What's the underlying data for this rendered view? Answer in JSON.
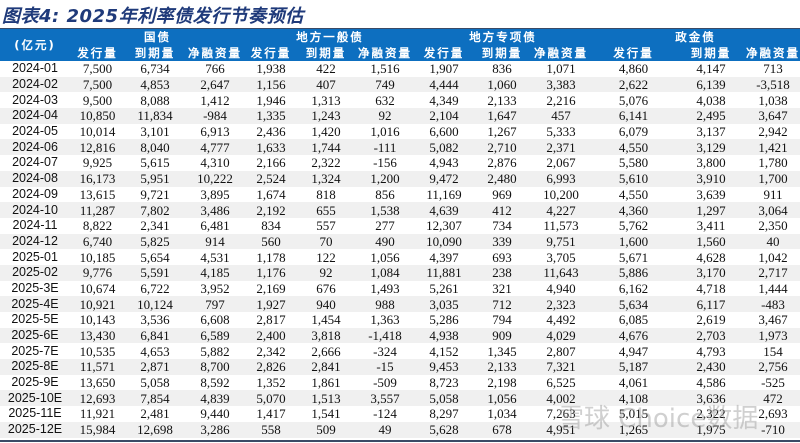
{
  "title": "图表4:  2025年利率债发行节奏预估",
  "unit_label": "(亿元)",
  "groups": [
    "国债",
    "地方一般债",
    "地方专项债",
    "政金债"
  ],
  "subheaders": [
    "发行量",
    "到期量",
    "净融资量"
  ],
  "rows": [
    [
      "2024-01",
      "7,500",
      "6,734",
      "766",
      "1,938",
      "422",
      "1,516",
      "1,907",
      "836",
      "1,071",
      "4,860",
      "4,147",
      "713"
    ],
    [
      "2024-02",
      "7,500",
      "4,853",
      "2,647",
      "1,156",
      "407",
      "749",
      "4,444",
      "1,060",
      "3,383",
      "2,622",
      "6,139",
      "-3,518"
    ],
    [
      "2024-03",
      "9,500",
      "8,088",
      "1,412",
      "1,946",
      "1,313",
      "632",
      "4,349",
      "2,133",
      "2,216",
      "5,076",
      "4,038",
      "1,038"
    ],
    [
      "2024-04",
      "10,850",
      "11,834",
      "-984",
      "1,335",
      "1,243",
      "92",
      "2,104",
      "1,647",
      "457",
      "6,141",
      "2,495",
      "3,647"
    ],
    [
      "2024-05",
      "10,014",
      "3,101",
      "6,913",
      "2,436",
      "1,420",
      "1,016",
      "6,600",
      "1,267",
      "5,333",
      "6,079",
      "3,137",
      "2,942"
    ],
    [
      "2024-06",
      "12,816",
      "8,040",
      "4,777",
      "1,633",
      "1,744",
      "-111",
      "5,082",
      "2,710",
      "2,371",
      "4,550",
      "3,129",
      "1,421"
    ],
    [
      "2024-07",
      "9,925",
      "5,615",
      "4,310",
      "2,166",
      "2,322",
      "-156",
      "4,943",
      "2,876",
      "2,067",
      "5,580",
      "3,800",
      "1,780"
    ],
    [
      "2024-08",
      "16,173",
      "5,951",
      "10,222",
      "2,524",
      "1,324",
      "1,200",
      "9,472",
      "2,480",
      "6,993",
      "5,610",
      "3,910",
      "1,700"
    ],
    [
      "2024-09",
      "13,615",
      "9,721",
      "3,895",
      "1,674",
      "818",
      "856",
      "11,169",
      "969",
      "10,200",
      "4,550",
      "3,639",
      "911"
    ],
    [
      "2024-10",
      "11,287",
      "7,802",
      "3,486",
      "2,192",
      "655",
      "1,538",
      "4,639",
      "412",
      "4,227",
      "4,360",
      "1,297",
      "3,064"
    ],
    [
      "2024-11",
      "8,822",
      "2,341",
      "6,481",
      "834",
      "557",
      "277",
      "12,307",
      "734",
      "11,573",
      "5,762",
      "3,411",
      "2,350"
    ],
    [
      "2024-12",
      "6,740",
      "5,825",
      "914",
      "560",
      "70",
      "490",
      "10,090",
      "339",
      "9,751",
      "1,600",
      "1,560",
      "40"
    ],
    [
      "2025-01",
      "10,185",
      "5,654",
      "4,531",
      "1,178",
      "122",
      "1,056",
      "4,397",
      "693",
      "3,705",
      "5,671",
      "4,628",
      "1,042"
    ],
    [
      "2025-02",
      "9,776",
      "5,591",
      "4,185",
      "1,176",
      "92",
      "1,084",
      "11,881",
      "238",
      "11,643",
      "5,886",
      "3,170",
      "2,717"
    ],
    [
      "2025-3E",
      "10,674",
      "6,722",
      "3,952",
      "2,169",
      "676",
      "1,493",
      "5,261",
      "321",
      "4,940",
      "6,162",
      "4,718",
      "1,444"
    ],
    [
      "2025-4E",
      "10,921",
      "10,124",
      "797",
      "1,927",
      "940",
      "988",
      "3,035",
      "712",
      "2,323",
      "5,634",
      "6,117",
      "-483"
    ],
    [
      "2025-5E",
      "10,143",
      "3,536",
      "6,608",
      "2,817",
      "1,454",
      "1,363",
      "5,286",
      "794",
      "4,492",
      "6,085",
      "2,619",
      "3,467"
    ],
    [
      "2025-6E",
      "13,430",
      "6,841",
      "6,589",
      "2,400",
      "3,818",
      "-1,418",
      "4,938",
      "909",
      "4,029",
      "4,676",
      "2,703",
      "1,973"
    ],
    [
      "2025-7E",
      "10,535",
      "4,653",
      "5,882",
      "2,342",
      "2,666",
      "-324",
      "4,152",
      "1,345",
      "2,807",
      "4,947",
      "4,793",
      "154"
    ],
    [
      "2025-8E",
      "11,571",
      "2,871",
      "8,700",
      "2,826",
      "2,841",
      "-15",
      "9,453",
      "2,133",
      "7,321",
      "5,187",
      "2,430",
      "2,756"
    ],
    [
      "2025-9E",
      "13,650",
      "5,058",
      "8,592",
      "1,352",
      "1,861",
      "-509",
      "8,723",
      "2,198",
      "6,525",
      "4,061",
      "4,586",
      "-525"
    ],
    [
      "2025-10E",
      "12,693",
      "7,854",
      "4,839",
      "5,070",
      "1,513",
      "3,557",
      "5,058",
      "1,056",
      "4,002",
      "4,108",
      "3,636",
      "472"
    ],
    [
      "2025-11E",
      "11,921",
      "2,481",
      "9,440",
      "1,417",
      "1,541",
      "-124",
      "8,297",
      "1,034",
      "7,263",
      "5,015",
      "2,322",
      "2,693"
    ],
    [
      "2025-12E",
      "15,984",
      "12,698",
      "3,286",
      "558",
      "509",
      "49",
      "5,628",
      "678",
      "4,951",
      "1,265",
      "1,975",
      "-710"
    ]
  ],
  "watermark": "雪球 Choice数据",
  "colors": {
    "header_bg": "#0d6fc0",
    "title": "#1f3a7a",
    "alt_row": "#f0f0f0"
  }
}
